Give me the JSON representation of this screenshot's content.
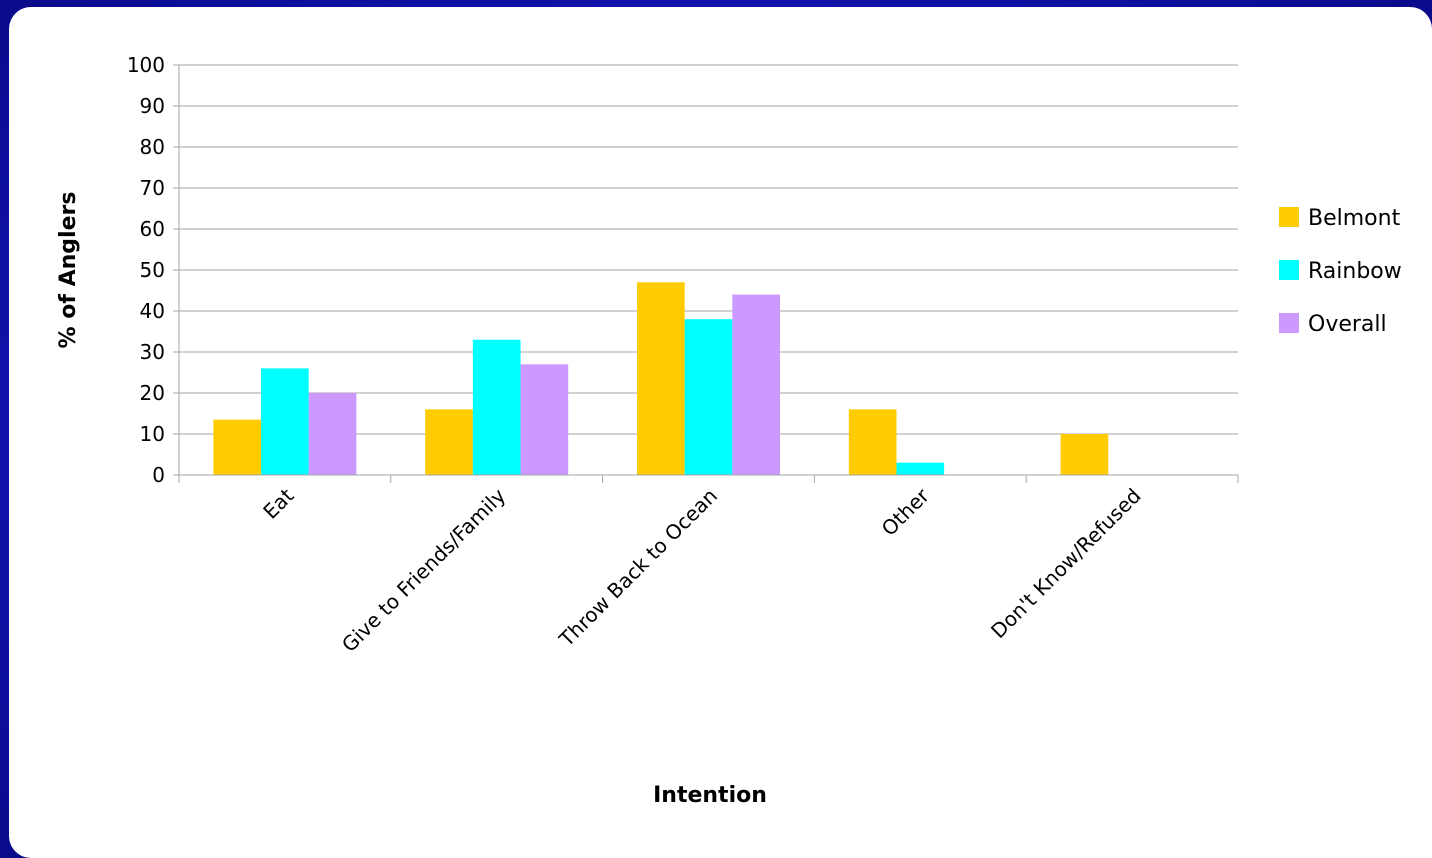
{
  "chart_data": {
    "type": "bar",
    "title": "",
    "xlabel": "Intention",
    "ylabel": "% of Anglers",
    "ylim": [
      0,
      100
    ],
    "yticks": [
      0,
      10,
      20,
      30,
      40,
      50,
      60,
      70,
      80,
      90,
      100
    ],
    "grid": true,
    "legend_position": "right",
    "categories": [
      "Eat",
      "Give to Friends/Family",
      "Throw Back to Ocean",
      "Other",
      "Don't Know/Refused"
    ],
    "series": [
      {
        "name": "Belmont",
        "color": "#FFCC00",
        "values": [
          13.5,
          16,
          47,
          16,
          10
        ]
      },
      {
        "name": "Rainbow",
        "color": "#00FFFF",
        "values": [
          26,
          33,
          38,
          3,
          0
        ]
      },
      {
        "name": "Overall",
        "color": "#CC99FF",
        "values": [
          20,
          27,
          44,
          0,
          0
        ]
      }
    ]
  }
}
